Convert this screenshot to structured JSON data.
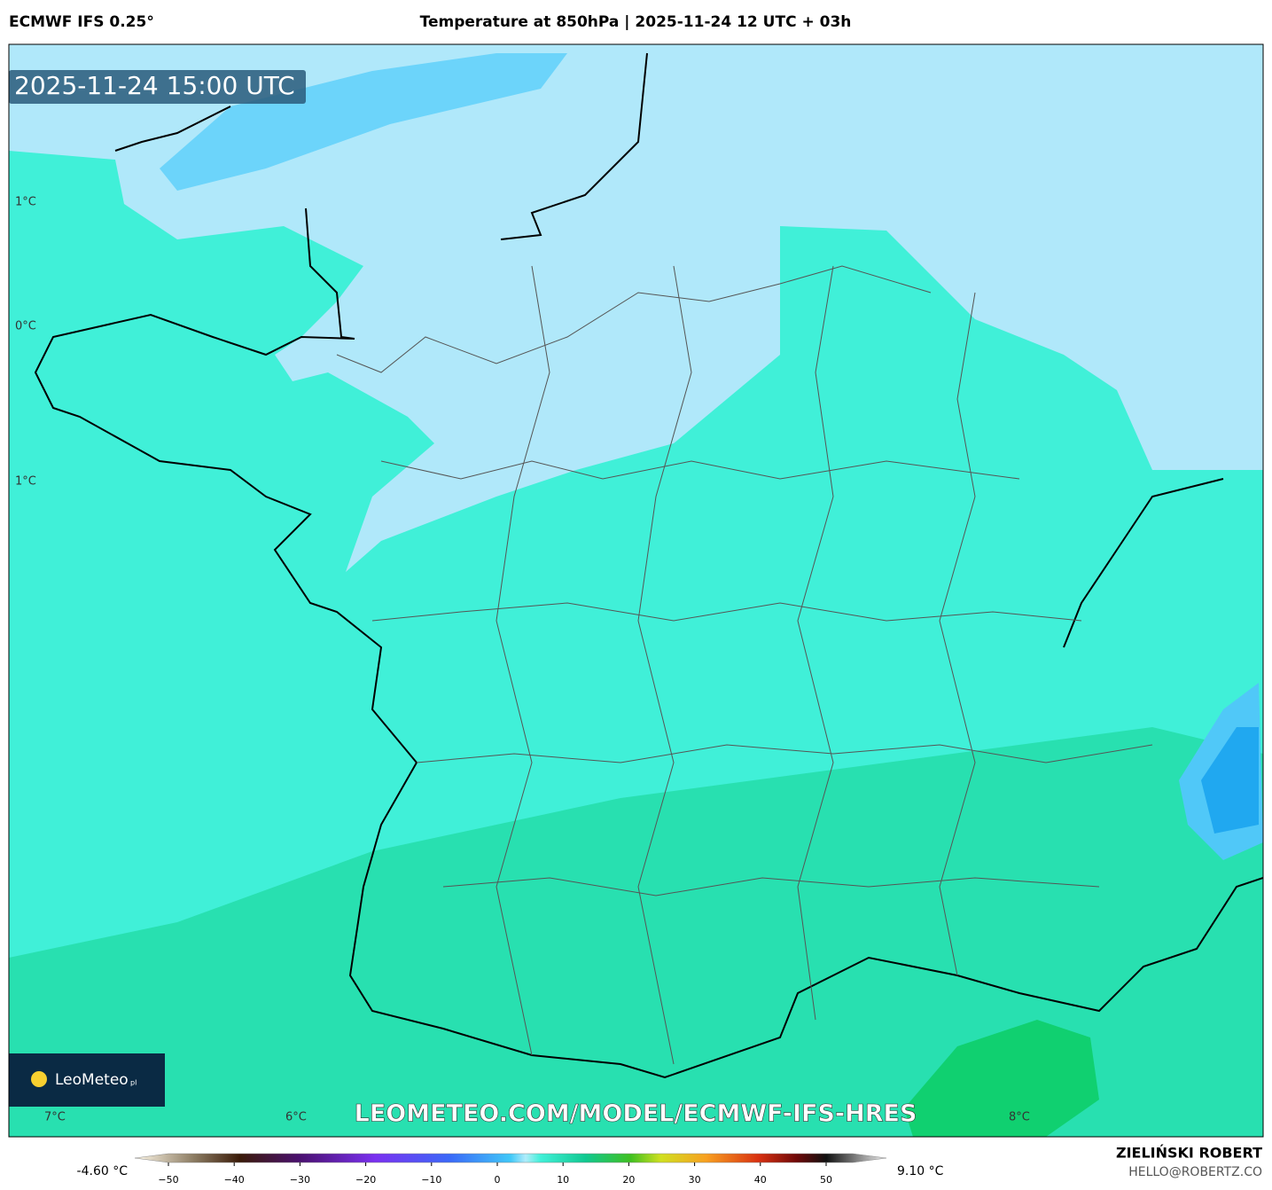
{
  "header": {
    "model": "ECMWF IFS 0.25°",
    "title": "Temperature at 850hPa | 2025-11-24 12 UTC + 03h"
  },
  "map": {
    "timestamp": "2025-11-24 15:00 UTC",
    "contour_labels": [
      "1°C",
      "0°C",
      "1°C",
      "7°C",
      "6°C",
      "8°C"
    ],
    "logo": "LeoMeteo",
    "logo_suffix": "pl",
    "watermark": "LEOMETEO.COM/MODEL/ECMWF-IFS-HRES"
  },
  "colorbar": {
    "min_label": "-4.60 °C",
    "max_label": "9.10 °C",
    "ticks": [
      "−50",
      "−40",
      "−30",
      "−20",
      "−10",
      "0",
      "10",
      "20",
      "30",
      "40",
      "50"
    ]
  },
  "footer": {
    "author": "ZIELIŃSKI ROBERT",
    "contact": "HELLO@ROBERTZ.CO"
  }
}
